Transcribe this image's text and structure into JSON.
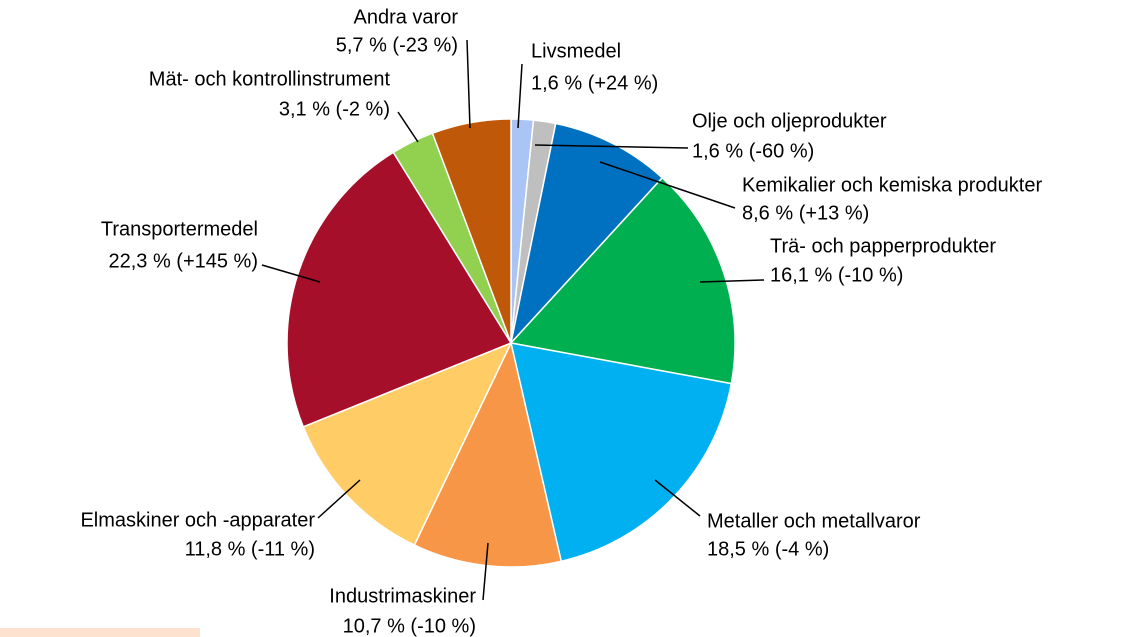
{
  "chart_data": {
    "type": "pie",
    "categories": [
      "Livsmedel",
      "Olje och oljeprodukter",
      "Kemikalier och kemiska produkter",
      "Trä- och papperprodukter",
      "Metaller och metallvaror",
      "Industrimaskiner",
      "Elmaskiner och -apparater",
      "Transportermedel",
      "Mät- och kontrollinstrument",
      "Andra varor"
    ],
    "values": [
      1.6,
      1.6,
      8.6,
      16.1,
      18.5,
      10.7,
      11.8,
      22.3,
      3.1,
      5.7
    ],
    "value_labels": [
      "1,6 % (+24 %)",
      "1,6 % (-60 %)",
      "8,6 % (+13 %)",
      "16,1 % (-10 %)",
      "18,5 % (-4 %)",
      "10,7 % (-10 %)",
      "11,8 % (-11 %)",
      "22,3 % (+145 %)",
      "3,1 % (-2 %)",
      "5,7 % (-23 %)"
    ],
    "colors": [
      "#a9c4f5",
      "#bfbfbf",
      "#0070c0",
      "#00b050",
      "#00b0f0",
      "#f79646",
      "#ffcc66",
      "#a50f2a",
      "#92d050",
      "#c0580a"
    ]
  }
}
